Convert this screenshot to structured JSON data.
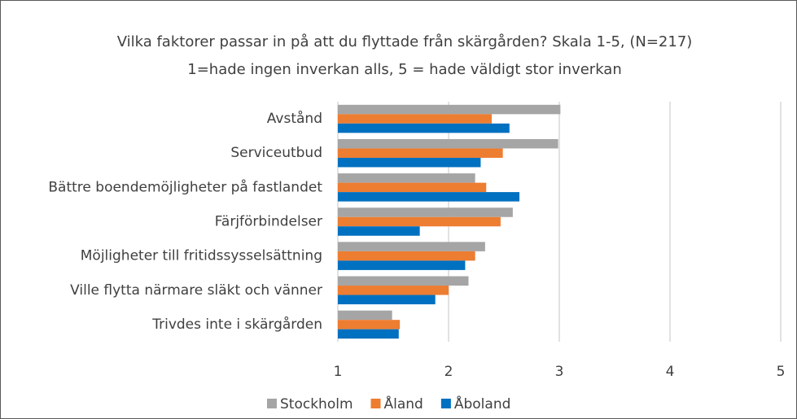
{
  "chart_data": {
    "type": "hbar",
    "title": "Vilka faktorer passar in på att du flyttade från skärgården? Skala 1-5, (N=217)",
    "subtitle": "1=hade ingen inverkan alls, 5 = hade väldigt stor inverkan",
    "categories": [
      "Avstånd",
      "Serviceutbud",
      "Bättre boendemöjligheter på fastlandet",
      "Färjförbindelser",
      "Möjligheter till fritidssysselsättning",
      "Ville flytta närmare släkt och vänner",
      "Trivdes inte i skärgården"
    ],
    "series": [
      {
        "name": "Stockholm",
        "color": "#a5a5a5",
        "values": [
          3.01,
          2.99,
          2.24,
          2.58,
          2.33,
          2.18,
          1.49
        ]
      },
      {
        "name": "Åland",
        "color": "#ed7d31",
        "values": [
          2.39,
          2.49,
          2.34,
          2.47,
          2.24,
          2.0,
          1.56
        ]
      },
      {
        "name": "Åboland",
        "color": "#0070c0",
        "values": [
          2.55,
          2.29,
          2.64,
          1.74,
          2.15,
          1.88,
          1.55
        ]
      }
    ],
    "xlim": [
      1,
      5
    ],
    "xticks": [
      1,
      2,
      3,
      4,
      5
    ],
    "grid": true,
    "legend": "bottom"
  }
}
